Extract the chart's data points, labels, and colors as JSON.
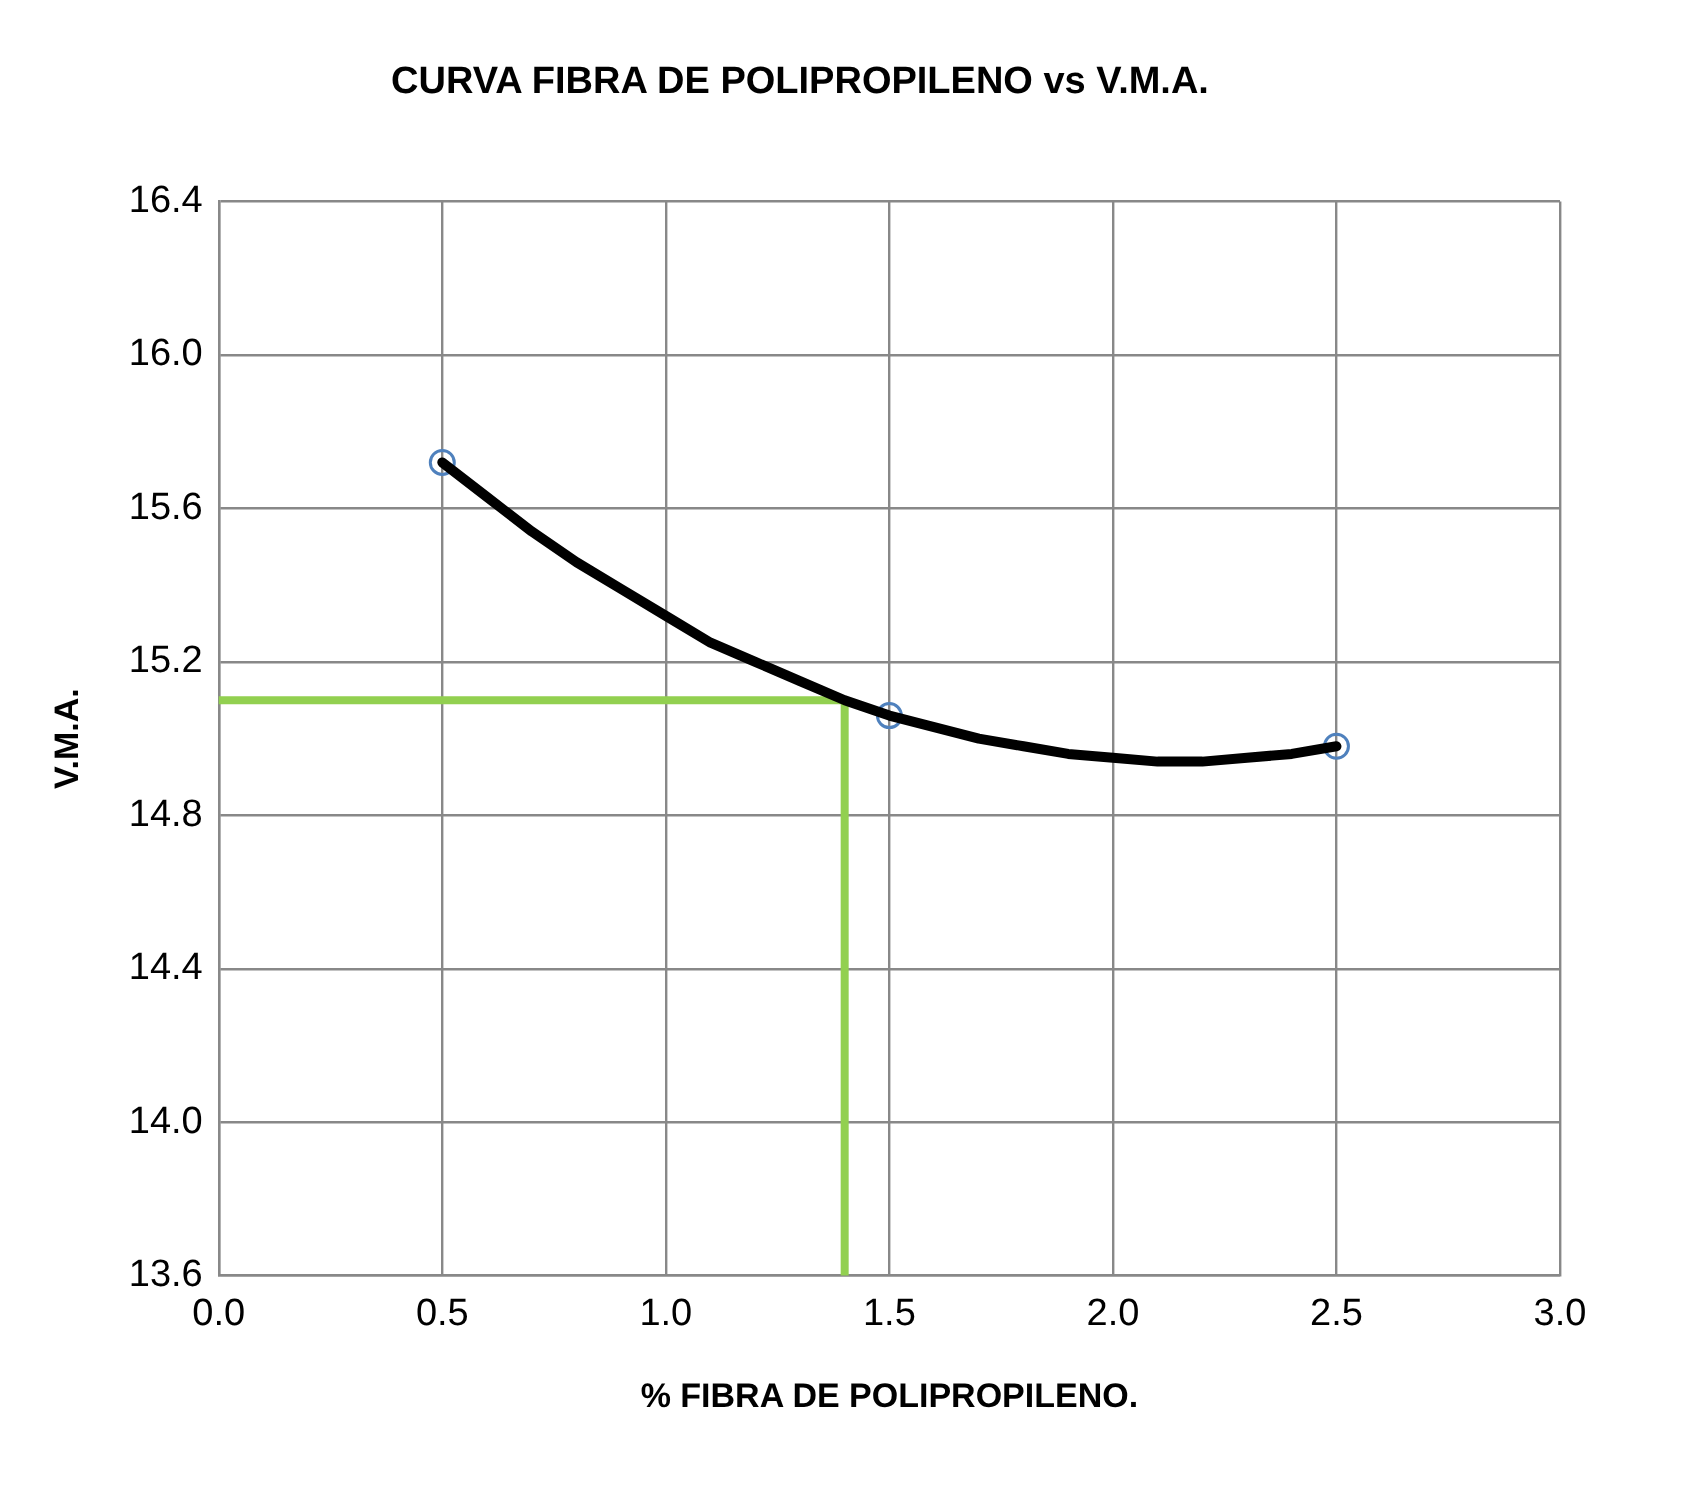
{
  "chart_data": {
    "type": "scatter",
    "title": "CURVA FIBRA DE POLIPROPILENO vs V.M.A.",
    "xlabel": "% FIBRA DE POLIPROPILENO.",
    "ylabel": "V.M.A.",
    "xlim": [
      0,
      3
    ],
    "xticks": [
      {
        "value": 0,
        "label": "0.0"
      },
      {
        "value": 0.5,
        "label": "0.5"
      },
      {
        "value": 1,
        "label": "1.0"
      },
      {
        "value": 1.5,
        "label": "1.5"
      },
      {
        "value": 2,
        "label": "2.0"
      },
      {
        "value": 2.5,
        "label": "2.5"
      },
      {
        "value": 3,
        "label": "3.0"
      }
    ],
    "ylim": [
      13.6,
      16.4
    ],
    "yticks": [
      13.6,
      {
        "value": 14,
        "label": "14.0"
      },
      14.4,
      14.8,
      15.2,
      15.6,
      {
        "value": 16,
        "label": "16.0"
      },
      16.4
    ],
    "grid": true,
    "legend": false,
    "series": [
      {
        "type": "line",
        "color": "#000000",
        "marker": "none",
        "x": [
          0.5,
          0.6,
          0.7,
          0.8,
          0.9,
          1.0,
          1.1,
          1.2,
          1.3,
          1.4,
          1.5,
          1.6,
          1.7,
          1.8,
          1.9,
          2.0,
          2.1,
          2.2,
          2.3,
          2.4,
          2.5
        ],
        "values": [
          15.72,
          15.63,
          15.54,
          15.46,
          15.39,
          15.32,
          15.25,
          15.2,
          15.15,
          15.1,
          15.06,
          15.03,
          15.0,
          14.98,
          14.96,
          14.95,
          14.94,
          14.94,
          14.95,
          14.96,
          14.98
        ]
      },
      {
        "color": "#4f81bd",
        "marker": "circle",
        "x": [
          0.5,
          1.5,
          2.5
        ],
        "values": [
          15.72,
          15.06,
          14.98
        ]
      },
      {
        "type": "line",
        "color": "#92d050",
        "marker": "none",
        "x": [
          0,
          1.4,
          1.4
        ],
        "values": [
          15.1,
          15.1,
          13.6
        ]
      }
    ]
  }
}
